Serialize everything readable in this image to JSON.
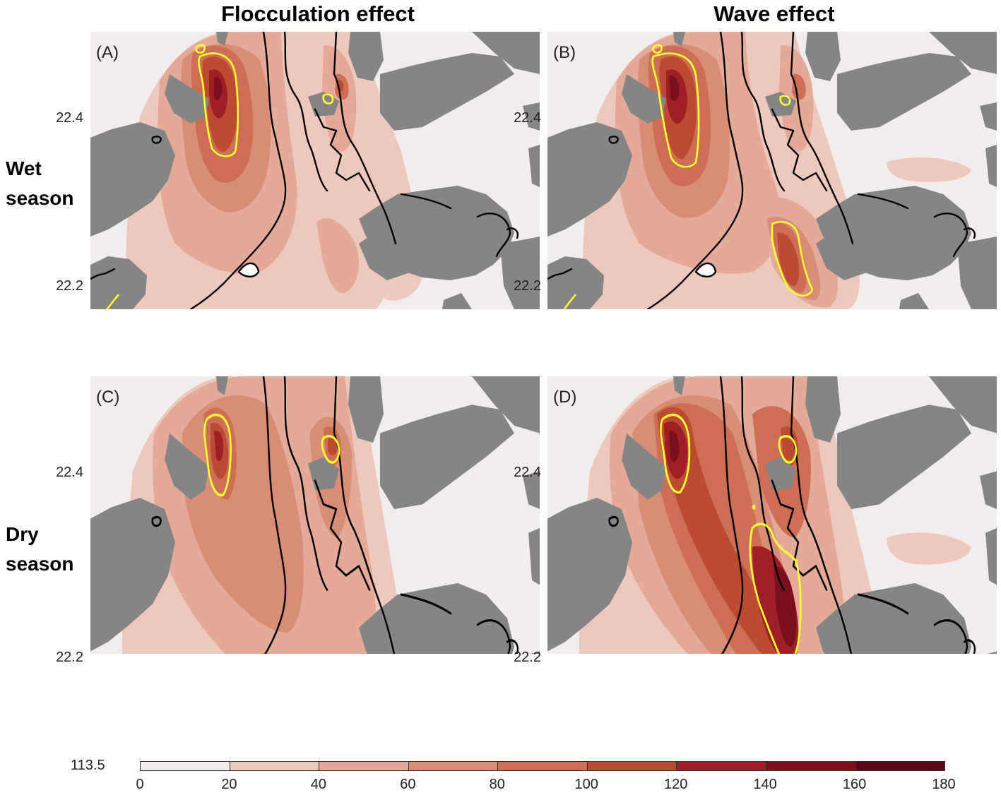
{
  "columns": [
    "Flocculation effect",
    "Wave effect"
  ],
  "rows": [
    "Wet season",
    "Dry season"
  ],
  "panels": [
    {
      "label": "(A)",
      "row": "Wet season",
      "column": "Flocculation effect"
    },
    {
      "label": "(B)",
      "row": "Wet season",
      "column": "Wave effect"
    },
    {
      "label": "(C)",
      "row": "Dry season",
      "column": "Flocculation effect"
    },
    {
      "label": "(D)",
      "row": "Dry season",
      "column": "Wave effect"
    }
  ],
  "lat_ticks": [
    "22.4",
    "22.2"
  ],
  "colorbar": {
    "lead_label": "113.5",
    "ticks": [
      "0",
      "20",
      "40",
      "60",
      "80",
      "100",
      "120",
      "140",
      "160",
      "180"
    ],
    "colors": [
      "#f1eded",
      "#efc8bd",
      "#e4aa98",
      "#d98d76",
      "#cd6f55",
      "#bd4a33",
      "#9e1f26",
      "#7a0f1d",
      "#5a0714"
    ]
  },
  "styles": {
    "land": "#858585",
    "sea": "#f1eded",
    "contour": "#000000",
    "highlight_contour": "#ffff33"
  }
}
